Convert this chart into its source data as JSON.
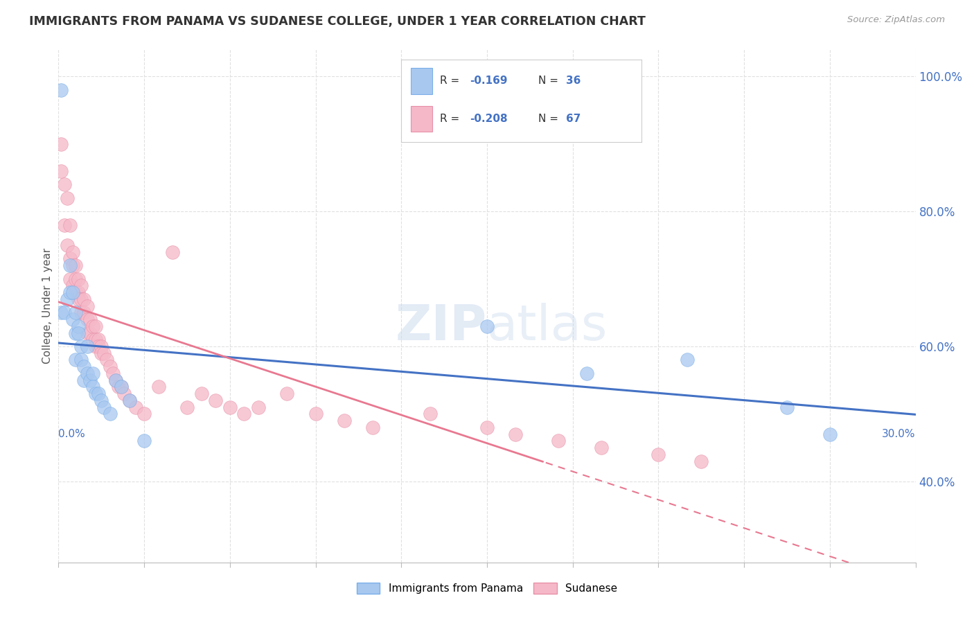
{
  "title": "IMMIGRANTS FROM PANAMA VS SUDANESE COLLEGE, UNDER 1 YEAR CORRELATION CHART",
  "source": "Source: ZipAtlas.com",
  "ylabel": "College, Under 1 year",
  "legend_label1": "Immigrants from Panama",
  "legend_label2": "Sudanese",
  "R1": -0.169,
  "N1": 36,
  "R2": -0.208,
  "N2": 67,
  "blue_color": "#A8C8F0",
  "blue_edge_color": "#7AAEE8",
  "pink_color": "#F5B8C8",
  "pink_edge_color": "#E890A8",
  "blue_line_color": "#4472C4",
  "pink_line_color": "#E87890",
  "watermark": "ZIPatlas",
  "panama_x": [
    0.001,
    0.001,
    0.002,
    0.003,
    0.004,
    0.004,
    0.005,
    0.005,
    0.006,
    0.006,
    0.006,
    0.007,
    0.007,
    0.008,
    0.008,
    0.009,
    0.009,
    0.01,
    0.01,
    0.011,
    0.012,
    0.012,
    0.013,
    0.014,
    0.015,
    0.016,
    0.018,
    0.02,
    0.022,
    0.025,
    0.03,
    0.15,
    0.185,
    0.22,
    0.255,
    0.27
  ],
  "panama_y": [
    0.98,
    0.65,
    0.65,
    0.67,
    0.72,
    0.68,
    0.68,
    0.64,
    0.65,
    0.62,
    0.58,
    0.63,
    0.62,
    0.6,
    0.58,
    0.57,
    0.55,
    0.6,
    0.56,
    0.55,
    0.56,
    0.54,
    0.53,
    0.53,
    0.52,
    0.51,
    0.5,
    0.55,
    0.54,
    0.52,
    0.46,
    0.63,
    0.56,
    0.58,
    0.51,
    0.47
  ],
  "sudanese_x": [
    0.001,
    0.001,
    0.002,
    0.002,
    0.003,
    0.003,
    0.004,
    0.004,
    0.004,
    0.005,
    0.005,
    0.005,
    0.006,
    0.006,
    0.006,
    0.007,
    0.007,
    0.007,
    0.008,
    0.008,
    0.008,
    0.009,
    0.009,
    0.01,
    0.01,
    0.01,
    0.011,
    0.011,
    0.012,
    0.012,
    0.013,
    0.013,
    0.013,
    0.014,
    0.014,
    0.015,
    0.015,
    0.016,
    0.017,
    0.018,
    0.019,
    0.02,
    0.021,
    0.022,
    0.023,
    0.025,
    0.027,
    0.03,
    0.035,
    0.04,
    0.045,
    0.05,
    0.055,
    0.06,
    0.065,
    0.07,
    0.08,
    0.09,
    0.1,
    0.11,
    0.13,
    0.15,
    0.16,
    0.175,
    0.19,
    0.21,
    0.225
  ],
  "sudanese_y": [
    0.86,
    0.9,
    0.84,
    0.78,
    0.82,
    0.75,
    0.78,
    0.73,
    0.7,
    0.74,
    0.72,
    0.69,
    0.72,
    0.7,
    0.68,
    0.7,
    0.68,
    0.67,
    0.69,
    0.67,
    0.65,
    0.67,
    0.65,
    0.66,
    0.64,
    0.62,
    0.64,
    0.62,
    0.63,
    0.61,
    0.63,
    0.61,
    0.6,
    0.61,
    0.6,
    0.6,
    0.59,
    0.59,
    0.58,
    0.57,
    0.56,
    0.55,
    0.54,
    0.54,
    0.53,
    0.52,
    0.51,
    0.5,
    0.54,
    0.74,
    0.51,
    0.53,
    0.52,
    0.51,
    0.5,
    0.51,
    0.53,
    0.5,
    0.49,
    0.48,
    0.5,
    0.48,
    0.47,
    0.46,
    0.45,
    0.44,
    0.43
  ],
  "xlim": [
    0.0,
    0.3
  ],
  "ylim": [
    0.28,
    1.04
  ],
  "right_yticks": [
    0.4,
    0.6,
    0.8,
    1.0
  ],
  "right_yticklabels": [
    "40.0%",
    "60.0%",
    "80.0%",
    "100.0%"
  ],
  "background_color": "#FFFFFF",
  "grid_color": "#E0E0E0",
  "title_color": "#333333",
  "source_color": "#999999",
  "tick_label_color": "#4472C4"
}
